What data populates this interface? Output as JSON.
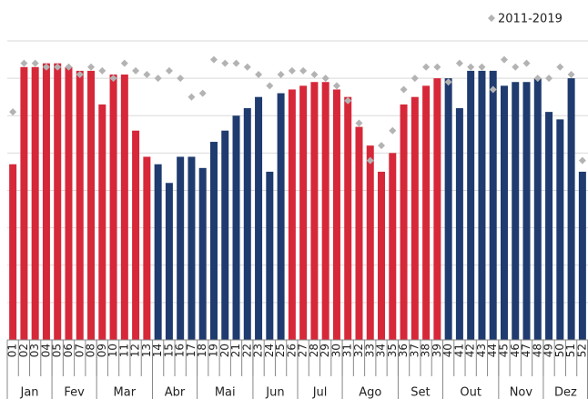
{
  "chart_data": {
    "type": "bar",
    "categories": [
      "01",
      "02",
      "03",
      "04",
      "05",
      "06",
      "07",
      "08",
      "09",
      "10",
      "11",
      "12",
      "13",
      "14",
      "15",
      "16",
      "17",
      "18",
      "19",
      "20",
      "21",
      "22",
      "23",
      "24",
      "25",
      "26",
      "27",
      "28",
      "29",
      "30",
      "31",
      "32",
      "33",
      "34",
      "35",
      "36",
      "37",
      "38",
      "39",
      "40",
      "41",
      "42",
      "43",
      "44",
      "45",
      "46",
      "47",
      "48",
      "49",
      "50",
      "51",
      "52"
    ],
    "values": [
      4.7,
      7.3,
      7.3,
      7.4,
      7.4,
      7.3,
      7.2,
      7.2,
      6.3,
      7.1,
      7.1,
      5.6,
      4.9,
      4.7,
      4.2,
      4.9,
      4.9,
      4.6,
      5.3,
      5.6,
      6.0,
      6.2,
      6.5,
      4.5,
      6.6,
      6.7,
      6.8,
      6.9,
      6.9,
      6.7,
      6.5,
      5.7,
      5.2,
      4.5,
      5.0,
      6.3,
      6.5,
      6.8,
      7.0,
      7.0,
      6.2,
      7.2,
      7.2,
      7.2,
      6.8,
      6.9,
      6.9,
      7.0,
      6.1,
      5.9,
      7.0,
      4.5
    ],
    "colors": [
      "#d62839",
      "#d62839",
      "#d62839",
      "#d62839",
      "#d62839",
      "#d62839",
      "#d62839",
      "#d62839",
      "#d62839",
      "#d62839",
      "#d62839",
      "#d62839",
      "#d62839",
      "#1f3b6f",
      "#1f3b6f",
      "#1f3b6f",
      "#1f3b6f",
      "#1f3b6f",
      "#1f3b6f",
      "#1f3b6f",
      "#1f3b6f",
      "#1f3b6f",
      "#1f3b6f",
      "#1f3b6f",
      "#1f3b6f",
      "#d62839",
      "#d62839",
      "#d62839",
      "#d62839",
      "#d62839",
      "#d62839",
      "#d62839",
      "#d62839",
      "#d62839",
      "#d62839",
      "#d62839",
      "#d62839",
      "#d62839",
      "#d62839",
      "#1f3b6f",
      "#1f3b6f",
      "#1f3b6f",
      "#1f3b6f",
      "#1f3b6f",
      "#1f3b6f",
      "#1f3b6f",
      "#1f3b6f",
      "#1f3b6f",
      "#1f3b6f",
      "#1f3b6f",
      "#1f3b6f",
      "#1f3b6f"
    ],
    "series": [
      {
        "name": "2011-2019",
        "color": "#b3b3b3",
        "values": [
          6.1,
          7.4,
          7.4,
          7.3,
          7.3,
          7.3,
          7.1,
          7.3,
          7.2,
          7.0,
          7.4,
          7.2,
          7.1,
          7.0,
          7.2,
          7.0,
          6.5,
          6.6,
          7.5,
          7.4,
          7.4,
          7.3,
          7.1,
          6.8,
          7.1,
          7.2,
          7.2,
          7.1,
          7.0,
          6.8,
          6.4,
          5.8,
          4.8,
          5.2,
          5.6,
          6.7,
          7.0,
          7.3,
          7.3,
          6.9,
          7.4,
          7.3,
          7.3,
          6.7,
          7.5,
          7.3,
          7.4,
          7.0,
          7.0,
          7.3,
          7.1,
          4.8
        ]
      }
    ],
    "months": [
      "Jan",
      "Fev",
      "Mar",
      "Abr",
      "Mai",
      "Jun",
      "Jul",
      "Ago",
      "Set",
      "Out",
      "Nov",
      "Dez"
    ],
    "ylim": [
      0,
      8
    ],
    "yticks": [
      0,
      1,
      2,
      3,
      4,
      5,
      6,
      7,
      8
    ],
    "grid": true,
    "legend": "top-right"
  }
}
